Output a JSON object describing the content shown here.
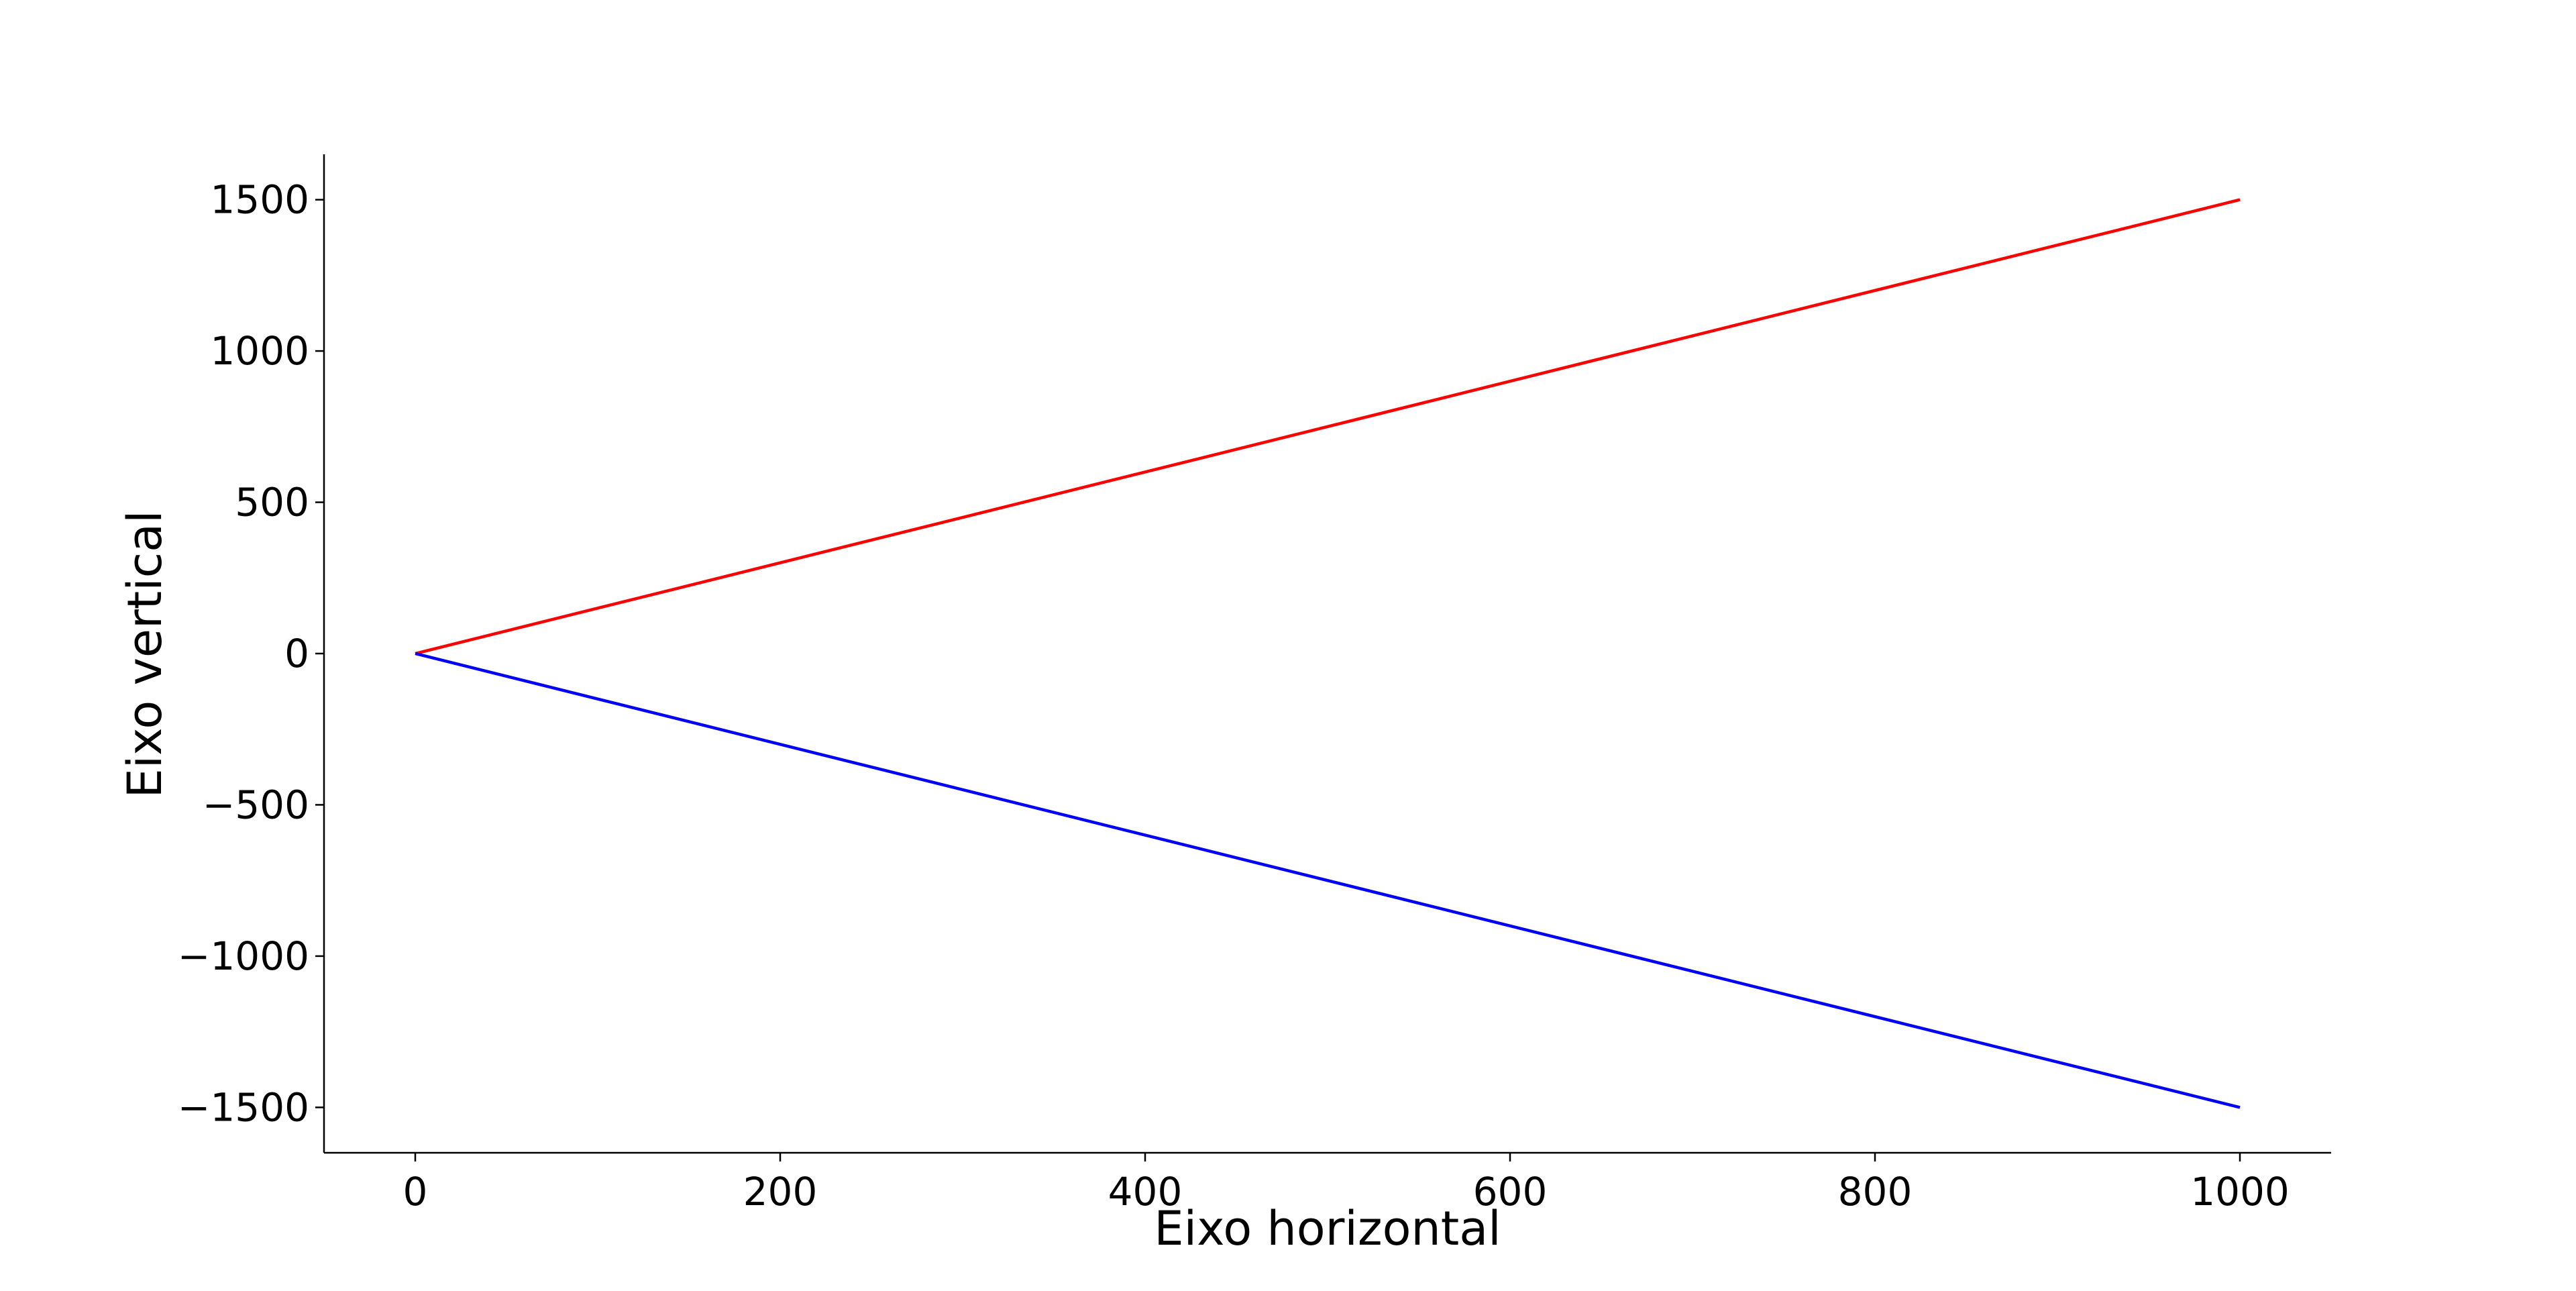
{
  "chart_data": {
    "type": "line",
    "title": "",
    "xlabel": "Eixo horizontal",
    "ylabel": "Eixo vertical",
    "xlim": [
      -50,
      1050
    ],
    "ylim": [
      -1650,
      1650
    ],
    "xticks": [
      0,
      200,
      400,
      600,
      800,
      1000
    ],
    "yticks": [
      -1500,
      -1000,
      -500,
      0,
      500,
      1000,
      1500
    ],
    "xtick_labels": [
      "0",
      "200",
      "400",
      "600",
      "800",
      "1000"
    ],
    "ytick_labels": [
      "−1500",
      "−1000",
      "−500",
      "0",
      "500",
      "1000",
      "1500"
    ],
    "grid": false,
    "legend": "none",
    "spines": [
      "left",
      "bottom"
    ],
    "series": [
      {
        "color": "#ff0000",
        "x": [
          0,
          1000
        ],
        "y": [
          0,
          1500
        ]
      },
      {
        "color": "#0000ff",
        "x": [
          0,
          1000
        ],
        "y": [
          0,
          -1500
        ]
      }
    ]
  }
}
